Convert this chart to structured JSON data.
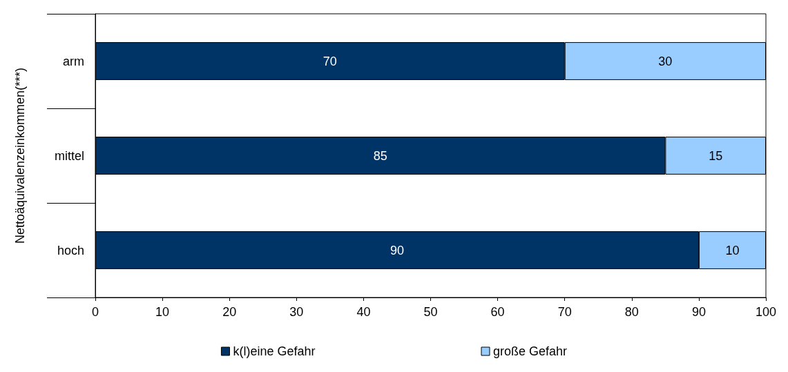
{
  "chart_data": {
    "type": "bar",
    "orientation": "horizontal",
    "stacked": true,
    "ylabel": "Nettoäquivalenzeinkommen(***)",
    "categories": [
      "arm",
      "mittel",
      "hoch"
    ],
    "series": [
      {
        "name": "k(l)eine Gefahr",
        "color": "#003366",
        "values": [
          70,
          85,
          90
        ]
      },
      {
        "name": "große Gefahr",
        "color": "#99ccff",
        "values": [
          30,
          15,
          10
        ]
      }
    ],
    "xlim": [
      0,
      100
    ],
    "xticks": [
      0,
      10,
      20,
      30,
      40,
      50,
      60,
      70,
      80,
      90,
      100
    ],
    "data_labels": true,
    "legend": "bottom",
    "grid": false
  }
}
